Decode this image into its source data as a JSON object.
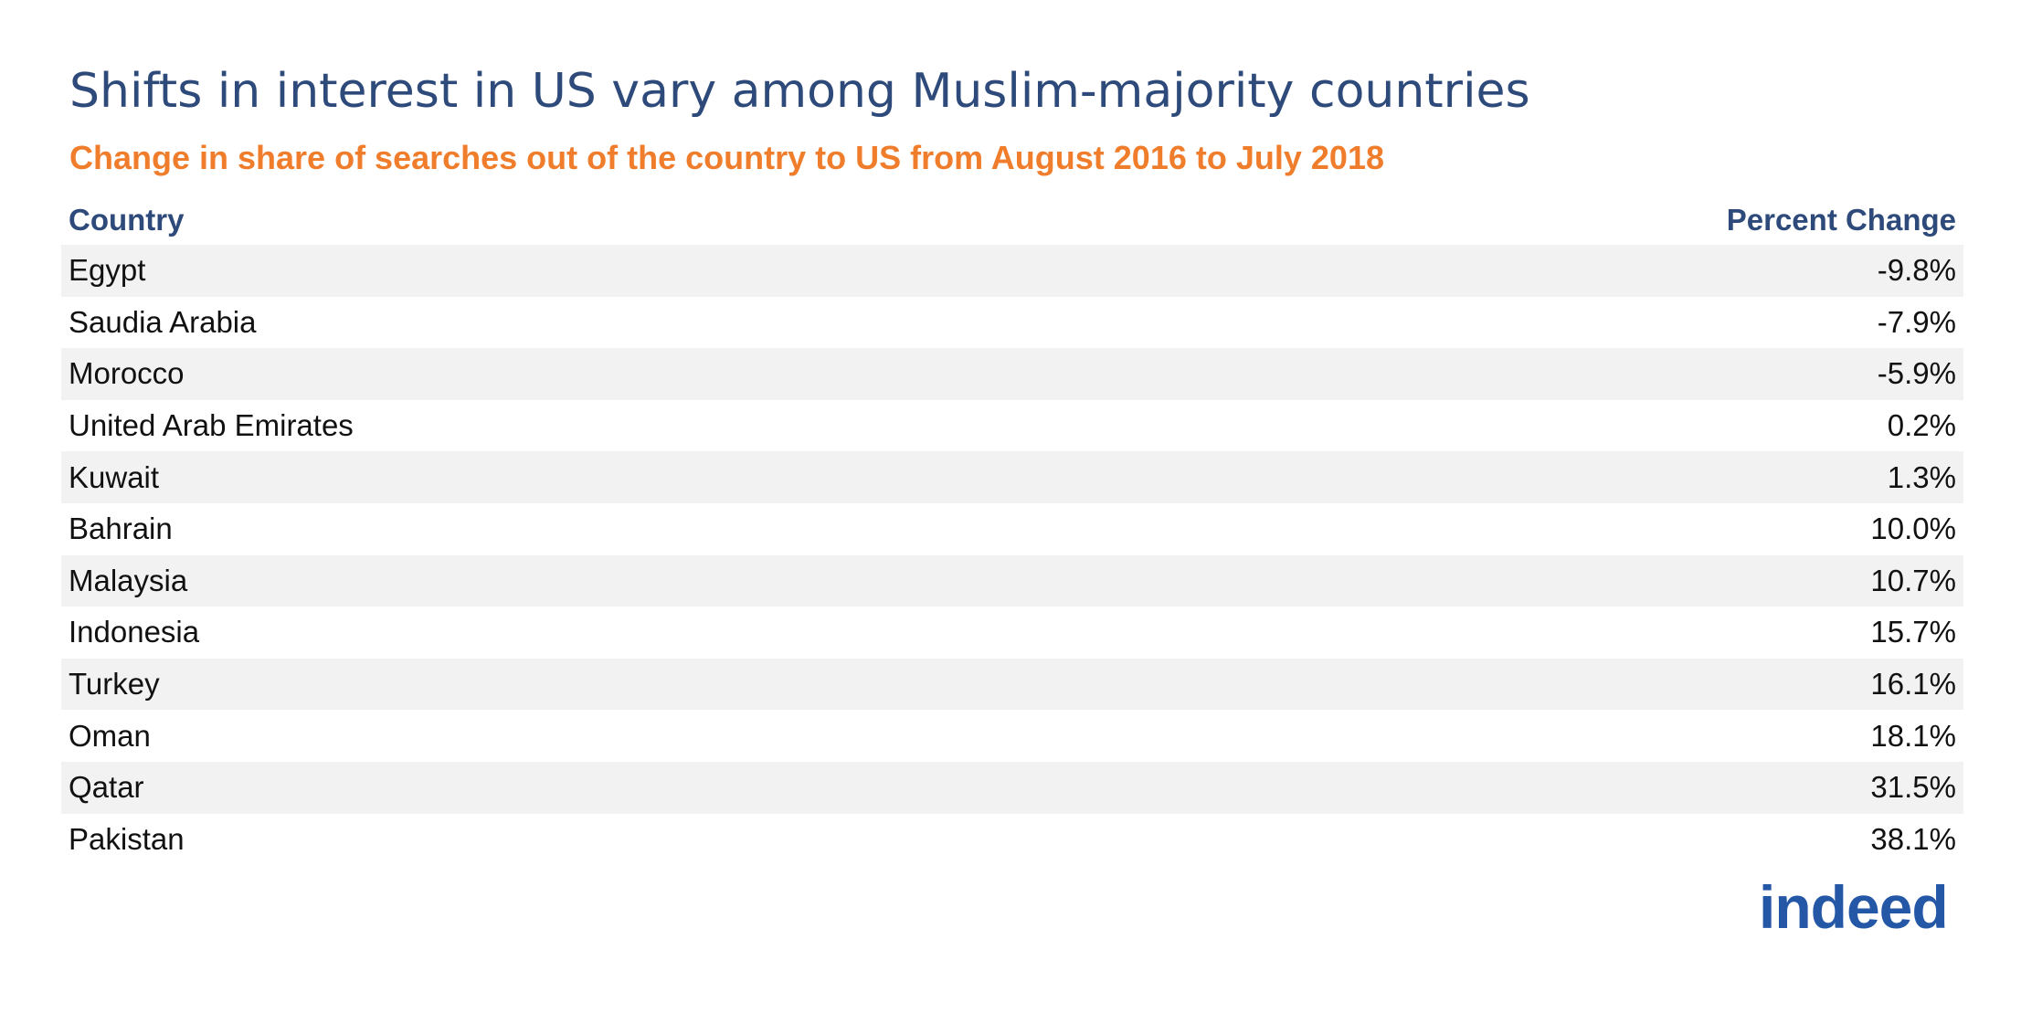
{
  "header": {
    "title": "Shifts in interest in US vary among Muslim-majority countries",
    "subtitle": "Change in share of searches out of the country to US from August 2016 to July 2018"
  },
  "table": {
    "columns": [
      "Country",
      "Percent Change"
    ],
    "rows": [
      [
        "Egypt",
        "-9.8%"
      ],
      [
        "Saudia Arabia",
        "-7.9%"
      ],
      [
        "Morocco",
        "-5.9%"
      ],
      [
        "United Arab Emirates",
        "0.2%"
      ],
      [
        "Kuwait",
        "1.3%"
      ],
      [
        "Bahrain",
        "10.0%"
      ],
      [
        "Malaysia",
        "10.7%"
      ],
      [
        "Indonesia",
        "15.7%"
      ],
      [
        "Turkey",
        "16.1%"
      ],
      [
        "Oman",
        "18.1%"
      ],
      [
        "Qatar",
        "31.5%"
      ],
      [
        "Pakistan",
        "38.1%"
      ]
    ]
  },
  "logo": "indeed"
}
